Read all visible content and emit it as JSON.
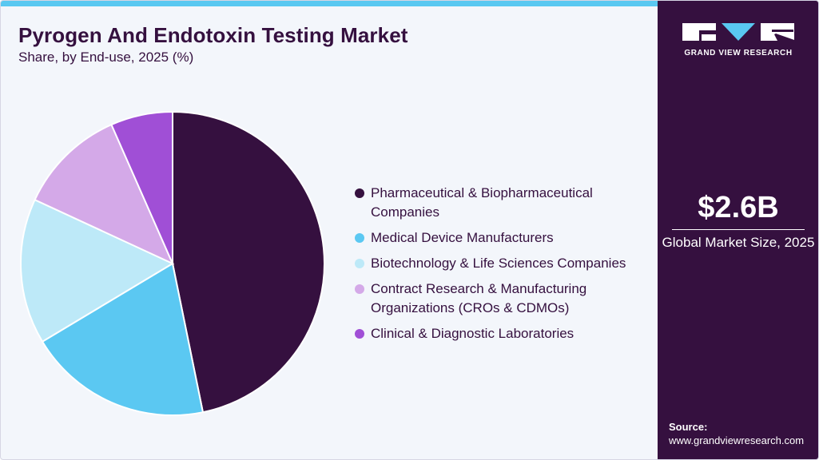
{
  "header": {
    "title": "Pyrogen And Endotoxin Testing Market",
    "subtitle": "Share, by End-use, 2025 (%)"
  },
  "chart_data": {
    "type": "pie",
    "title": "Pyrogen And Endotoxin Testing Market",
    "subtitle": "Share, by End-use, 2025 (%)",
    "legend_position": "right",
    "series": [
      {
        "values": [
          46.8,
          19.6,
          15.5,
          11.5,
          6.6
        ],
        "labels": [
          "Pharmaceutical & Biopharmaceutical Companies",
          "Medical Device Manufacturers",
          "Biotechnology & Life Sciences Companies",
          "Contract Research & Manufacturing Organizations (CROs & CDMOs)",
          "Clinical & Diagnostic Laboratories"
        ],
        "colors": [
          "#35103f",
          "#5bc8f2",
          "#bde9f8",
          "#d4a9e8",
          "#a04fd6"
        ]
      }
    ]
  },
  "legend": {
    "items": [
      {
        "label": "Pharmaceutical & Biopharmaceutical Companies",
        "color": "#35103f"
      },
      {
        "label": "Medical Device Manufacturers",
        "color": "#5bc8f2"
      },
      {
        "label": "Biotechnology & Life Sciences Companies",
        "color": "#bde9f8"
      },
      {
        "label": "Contract Research & Manufacturing Organizations (CROs & CDMOs)",
        "color": "#d4a9e8"
      },
      {
        "label": "Clinical & Diagnostic Laboratories",
        "color": "#a04fd6"
      }
    ]
  },
  "sidebar": {
    "logo_text": "GRAND VIEW RESEARCH",
    "market_size_value": "$2.6B",
    "market_size_label": "Global Market Size, 2025",
    "source_label": "Source:",
    "source_url": "www.grandviewresearch.com"
  },
  "colors": {
    "brand_dark": "#35103f",
    "accent": "#59c8f1",
    "background": "#f3f6fb"
  }
}
